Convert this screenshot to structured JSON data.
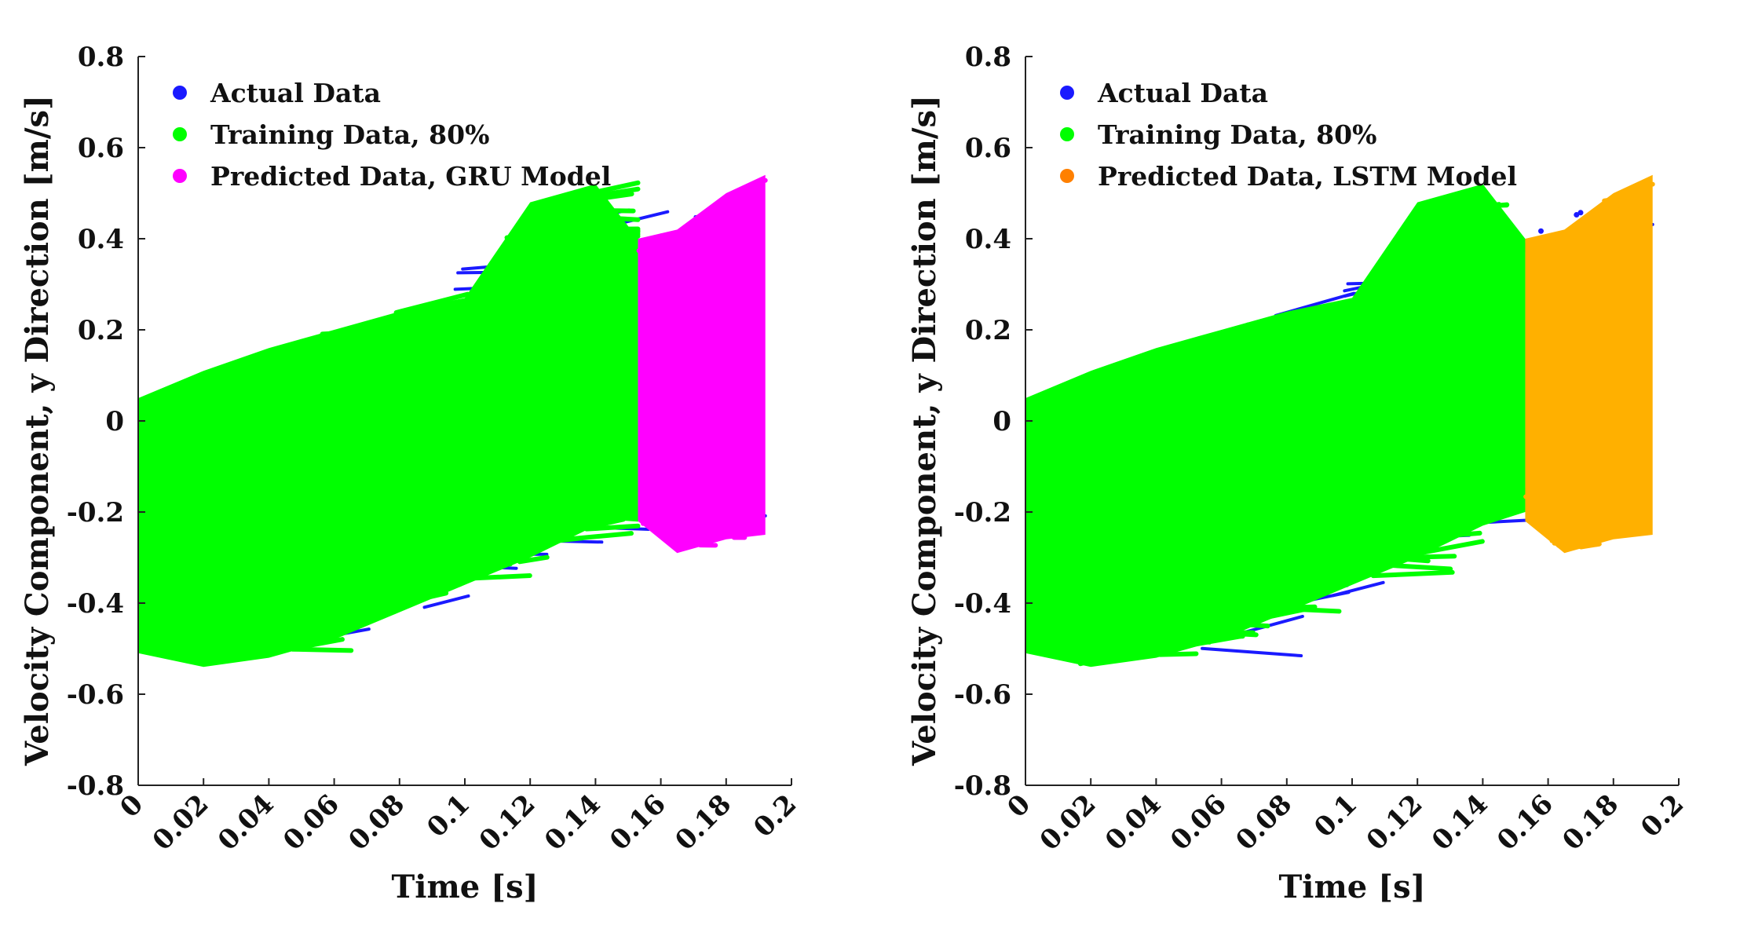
{
  "chart_data": [
    {
      "type": "scatter",
      "title": "",
      "xlabel": "Time [s]",
      "ylabel": "Velocity Component, y Direction [m/s]",
      "xlim": [
        0,
        0.2
      ],
      "ylim": [
        -0.8,
        0.8
      ],
      "xticks": [
        "0",
        "0.02",
        "0.04",
        "0.06",
        "0.08",
        "0.1",
        "0.12",
        "0.14",
        "0.16",
        "0.18",
        "0.2"
      ],
      "yticks": [
        "0.8",
        "0.6",
        "0.4",
        "0.2",
        "0",
        "-0.2",
        "-0.4",
        "-0.6",
        "-0.8"
      ],
      "grid": false,
      "legend_position": "top-left",
      "split_time": 0.153,
      "end_time": 0.192,
      "series": [
        {
          "name": "Actual Data",
          "color": "#1a1aff",
          "x": [
            0.0,
            0.04,
            0.08,
            0.12,
            0.153,
            0.192
          ],
          "upper": [
            0.05,
            0.15,
            0.24,
            0.45,
            0.4,
            0.54
          ],
          "lower": [
            -0.5,
            -0.53,
            -0.45,
            -0.3,
            -0.22,
            -0.25
          ]
        },
        {
          "name": "Training Data, 80%",
          "color": "#00ff00",
          "x": [
            0.0,
            0.02,
            0.04,
            0.06,
            0.08,
            0.1,
            0.12,
            0.14,
            0.153
          ],
          "upper": [
            0.05,
            0.11,
            0.16,
            0.2,
            0.24,
            0.27,
            0.48,
            0.52,
            0.4
          ],
          "lower": [
            -0.51,
            -0.54,
            -0.52,
            -0.48,
            -0.42,
            -0.36,
            -0.3,
            -0.23,
            -0.2
          ]
        },
        {
          "name": "Predicted Data, GRU Model",
          "color": "#ff00ff",
          "x": [
            0.153,
            0.165,
            0.18,
            0.192
          ],
          "upper": [
            0.4,
            0.42,
            0.5,
            0.54
          ],
          "lower": [
            -0.22,
            -0.29,
            -0.26,
            -0.25
          ]
        }
      ]
    },
    {
      "type": "scatter",
      "title": "",
      "xlabel": "Time [s]",
      "ylabel": "Velocity Component, y Direction [m/s]",
      "xlim": [
        0,
        0.2
      ],
      "ylim": [
        -0.8,
        0.8
      ],
      "xticks": [
        "0",
        "0.02",
        "0.04",
        "0.06",
        "0.08",
        "0.1",
        "0.12",
        "0.14",
        "0.16",
        "0.18",
        "0.2"
      ],
      "yticks": [
        "0.8",
        "0.6",
        "0.4",
        "0.2",
        "0",
        "-0.2",
        "-0.4",
        "-0.6",
        "-0.8"
      ],
      "grid": false,
      "legend_position": "top-left",
      "split_time": 0.153,
      "end_time": 0.192,
      "series": [
        {
          "name": "Actual Data",
          "color": "#1a1aff",
          "x": [
            0.0,
            0.04,
            0.08,
            0.12,
            0.153,
            0.192
          ],
          "upper": [
            0.05,
            0.15,
            0.24,
            0.45,
            0.4,
            0.54
          ],
          "lower": [
            -0.5,
            -0.53,
            -0.45,
            -0.3,
            -0.22,
            -0.25
          ]
        },
        {
          "name": "Training Data, 80%",
          "color": "#00ff00",
          "x": [
            0.0,
            0.02,
            0.04,
            0.06,
            0.08,
            0.1,
            0.12,
            0.14,
            0.153
          ],
          "upper": [
            0.05,
            0.11,
            0.16,
            0.2,
            0.24,
            0.27,
            0.48,
            0.52,
            0.4
          ],
          "lower": [
            -0.51,
            -0.54,
            -0.52,
            -0.48,
            -0.42,
            -0.36,
            -0.3,
            -0.23,
            -0.2
          ]
        },
        {
          "name": "Predicted Data, LSTM Model",
          "color": "#ffb000",
          "legend_color": "#ff8000",
          "x": [
            0.153,
            0.165,
            0.18,
            0.192
          ],
          "upper": [
            0.4,
            0.42,
            0.5,
            0.54
          ],
          "lower": [
            -0.22,
            -0.29,
            -0.26,
            -0.25
          ]
        }
      ]
    }
  ]
}
